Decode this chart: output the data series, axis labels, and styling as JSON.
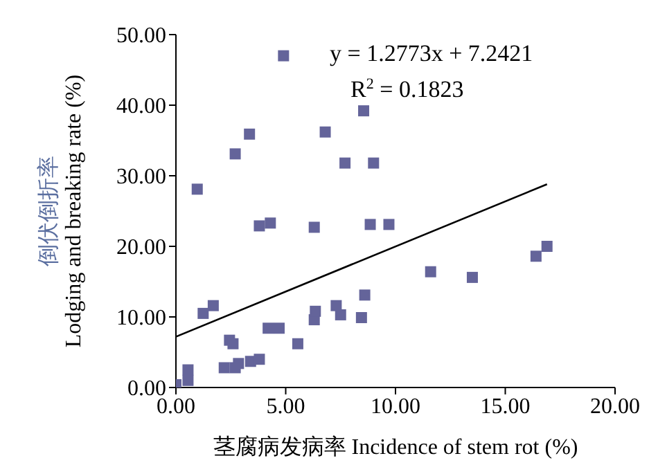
{
  "chart_data": {
    "type": "scatter",
    "xlabel": "茎腐病发病率 Incidence of stem rot (%)",
    "ylabel": "倒伏倒折率\nLodging and breaking rate (%)",
    "xlim": [
      0,
      20
    ],
    "ylim": [
      0,
      50
    ],
    "xticks": [
      {
        "value": 0,
        "label": "0.00"
      },
      {
        "value": 5,
        "label": "5.00"
      },
      {
        "value": 10,
        "label": "10.00"
      },
      {
        "value": 15,
        "label": "15.00"
      },
      {
        "value": 20,
        "label": "20.00"
      }
    ],
    "yticks": [
      {
        "value": 0,
        "label": "0.00"
      },
      {
        "value": 10,
        "label": "10.00"
      },
      {
        "value": 20,
        "label": "20.00"
      },
      {
        "value": 30,
        "label": "30.00"
      },
      {
        "value": 40,
        "label": "40.00"
      },
      {
        "value": 50,
        "label": "50.00"
      }
    ],
    "marker": "square",
    "grid": false,
    "series": [
      {
        "color": "#64649a",
        "x": [
          0,
          0.55,
          0.55,
          0.97,
          1.24,
          1.7,
          2.2,
          2.44,
          2.6,
          2.7,
          2.85,
          3.4,
          3.8,
          4.2,
          4.7,
          5.55,
          6.3,
          6.35,
          7.3,
          7.5,
          8.45,
          8.6,
          3.8,
          4.3,
          6.3,
          8.85,
          9.7,
          2.7,
          3.35,
          4.9,
          6.8,
          7.7,
          9.0,
          8.55,
          11.6,
          13.5,
          16.4,
          16.9
        ],
        "values": [
          0.4,
          2.5,
          1.0,
          28.1,
          10.5,
          11.6,
          2.8,
          6.7,
          6.2,
          2.8,
          3.4,
          3.7,
          4.0,
          8.4,
          8.4,
          6.2,
          9.6,
          10.8,
          11.6,
          10.3,
          9.9,
          13.1,
          22.9,
          23.3,
          22.7,
          23.1,
          23.1,
          33.1,
          35.9,
          47,
          36.2,
          31.8,
          31.8,
          39.2,
          16.4,
          15.6,
          18.6,
          20.0
        ]
      },
      {
        "type": "line",
        "color": "#000000",
        "marker": "none",
        "x": [
          0,
          16.9
        ],
        "values": [
          7.2,
          28.8
        ]
      }
    ],
    "annotations": [
      "y = 1.2773x + 7.2421",
      "R$^{2}$ = 0.1823"
    ]
  }
}
